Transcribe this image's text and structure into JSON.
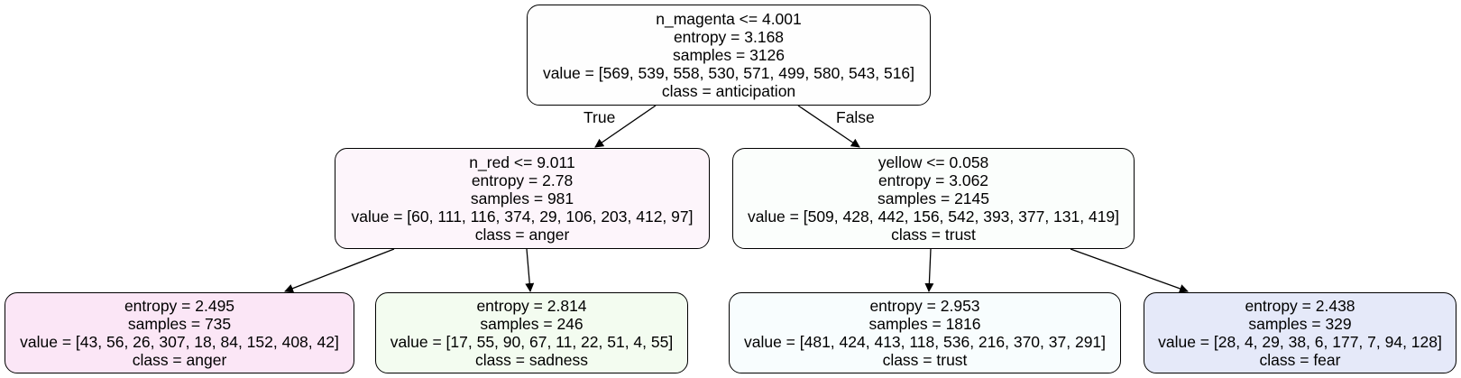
{
  "tree": {
    "root": {
      "split": "n_magenta <= 4.001",
      "entropy": "entropy = 3.168",
      "samples": "samples = 3126",
      "value": "value = [569, 539, 558, 530, 571, 499, 580, 543, 516]",
      "class": "class = anticipation",
      "fill": "#fefefe"
    },
    "left": {
      "split": "n_red <= 9.011",
      "entropy": "entropy = 2.78",
      "samples": "samples = 981",
      "value": "value = [60, 111, 116, 374, 29, 106, 203, 412, 97]",
      "class": "class = anger",
      "fill": "#fdf5fb"
    },
    "right": {
      "split": "yellow <= 0.058",
      "entropy": "entropy = 3.062",
      "samples": "samples = 2145",
      "value": "value = [509, 428, 442, 156, 542, 393, 377, 131, 419]",
      "class": "class = trust",
      "fill": "#fbfefc"
    },
    "left_left": {
      "entropy": "entropy = 2.495",
      "samples": "samples = 735",
      "value": "value = [43, 56, 26, 307, 18, 84, 152, 408, 42]",
      "class": "class = anger",
      "fill": "#fbe6f6"
    },
    "left_right": {
      "entropy": "entropy = 2.814",
      "samples": "samples = 246",
      "value": "value = [17, 55, 90, 67, 11, 22, 51, 4, 55]",
      "class": "class = sadness",
      "fill": "#f3fcf0"
    },
    "right_left": {
      "entropy": "entropy = 2.953",
      "samples": "samples = 1816",
      "value": "value = [481, 424, 413, 118, 536, 216, 370, 37, 291]",
      "class": "class = trust",
      "fill": "#f8fdfe"
    },
    "right_right": {
      "entropy": "entropy = 2.438",
      "samples": "samples = 329",
      "value": "value = [28, 4, 29, 38, 6, 177, 7, 94, 128]",
      "class": "class = fear",
      "fill": "#e5e9f9"
    }
  },
  "edge_labels": {
    "true_label": "True",
    "false_label": "False"
  }
}
